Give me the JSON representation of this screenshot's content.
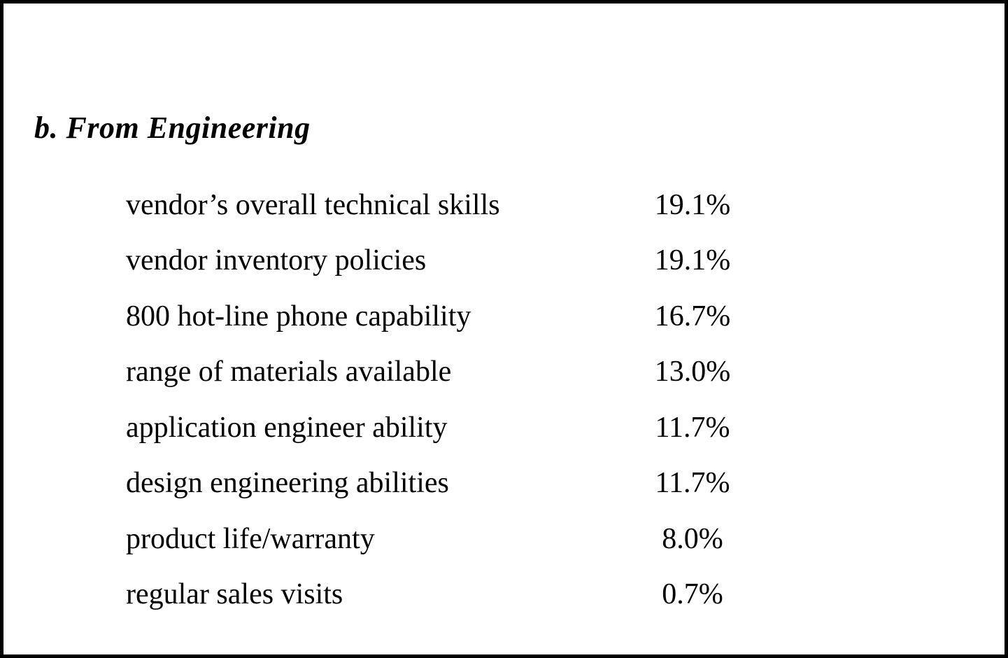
{
  "document": {
    "heading": "b. From Engineering",
    "rows": [
      {
        "label": "vendor’s overall technical skills",
        "value": "19.1%"
      },
      {
        "label": "vendor inventory policies",
        "value": "19.1%"
      },
      {
        "label": "800 hot-line phone capability",
        "value": "16.7%"
      },
      {
        "label": "range of materials available",
        "value": "13.0%"
      },
      {
        "label": "application engineer ability",
        "value": "11.7%"
      },
      {
        "label": "design engineering abilities",
        "value": "11.7%"
      },
      {
        "label": "product life/warranty",
        "value": "8.0%"
      },
      {
        "label": "regular sales visits",
        "value": "0.7%"
      }
    ],
    "colors": {
      "text": "#000000",
      "background": "#ffffff",
      "frame_border": "#000000"
    }
  }
}
